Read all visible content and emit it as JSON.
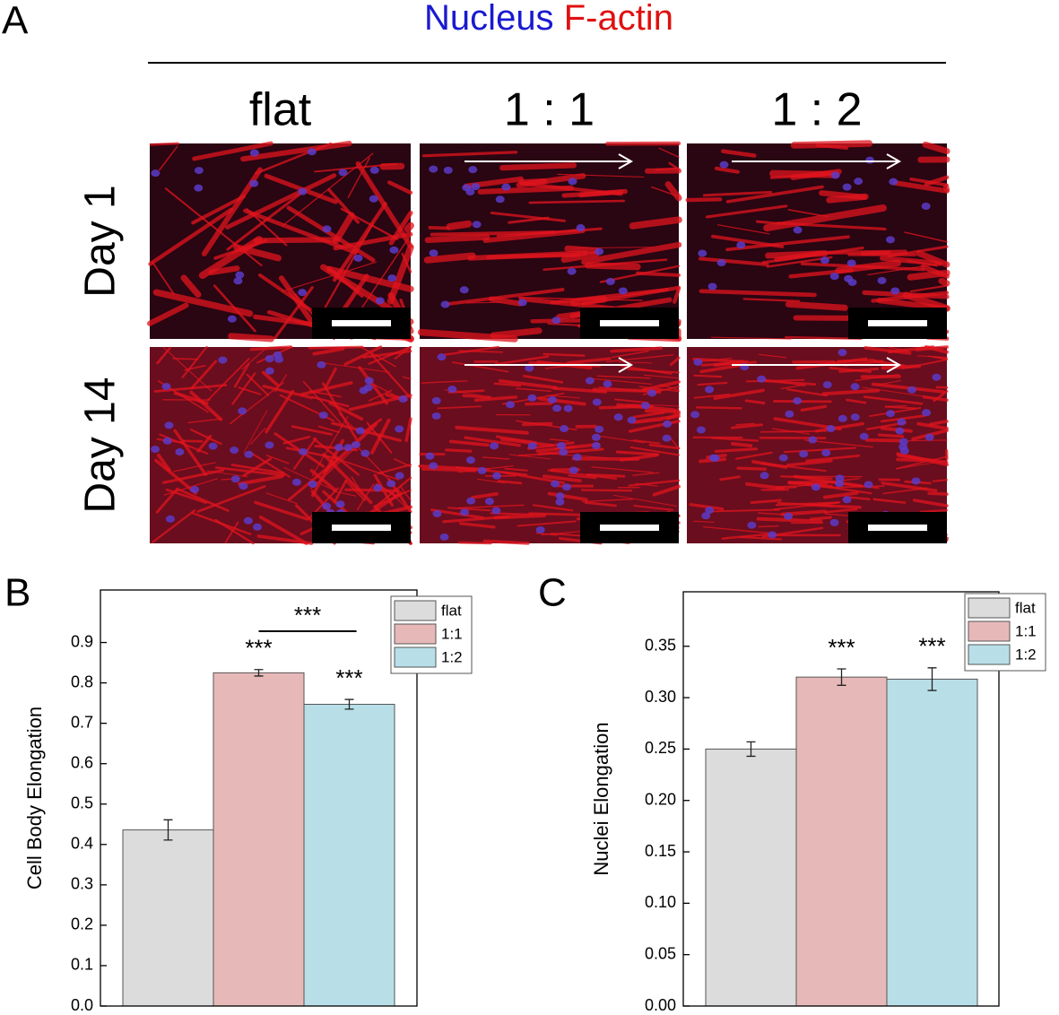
{
  "panel_a": {
    "label": "A",
    "title_nucleus": "Nucleus",
    "title_factin": "F-actin",
    "columns": [
      "flat",
      "1 : 1",
      "1 : 2"
    ],
    "rows": [
      "Day 1",
      "Day 14"
    ]
  },
  "chart_data": [
    {
      "type": "bar",
      "panel": "B",
      "ylabel": "Cell Body Elongation",
      "categories": [
        "flat",
        "1:1",
        "1:2"
      ],
      "values": [
        0.436,
        0.825,
        0.747
      ],
      "errors": [
        0.025,
        0.008,
        0.012
      ],
      "colors": [
        "#dcdcdc",
        "#e6b9b8",
        "#b8dfe8"
      ],
      "ylim": [
        0,
        1.03
      ],
      "yticks": [
        {
          "value": 0,
          "label": "0.0"
        },
        0.1,
        0.2,
        0.3,
        0.4,
        0.5,
        0.6,
        0.7,
        0.8,
        0.9
      ],
      "annotations": [
        "***",
        "***",
        "***"
      ]
    },
    {
      "type": "bar",
      "panel": "C",
      "ylabel": "Nuclei Elongation",
      "categories": [
        "flat",
        "1:1",
        "1:2"
      ],
      "values": [
        0.25,
        0.32,
        0.318
      ],
      "errors": [
        0.007,
        0.008,
        0.011
      ],
      "colors": [
        "#dcdcdc",
        "#e6b9b8",
        "#b8dfe8"
      ],
      "ylim": [
        0,
        0.403
      ],
      "yticks": [
        {
          "value": 0,
          "label": "0.00"
        },
        0.05,
        {
          "value": 0.1,
          "label": "0.10"
        },
        0.15,
        {
          "value": 0.2,
          "label": "0.20"
        },
        0.25,
        {
          "value": 0.3,
          "label": "0.30"
        },
        0.35
      ],
      "annotations": [
        "***",
        "***"
      ]
    }
  ]
}
